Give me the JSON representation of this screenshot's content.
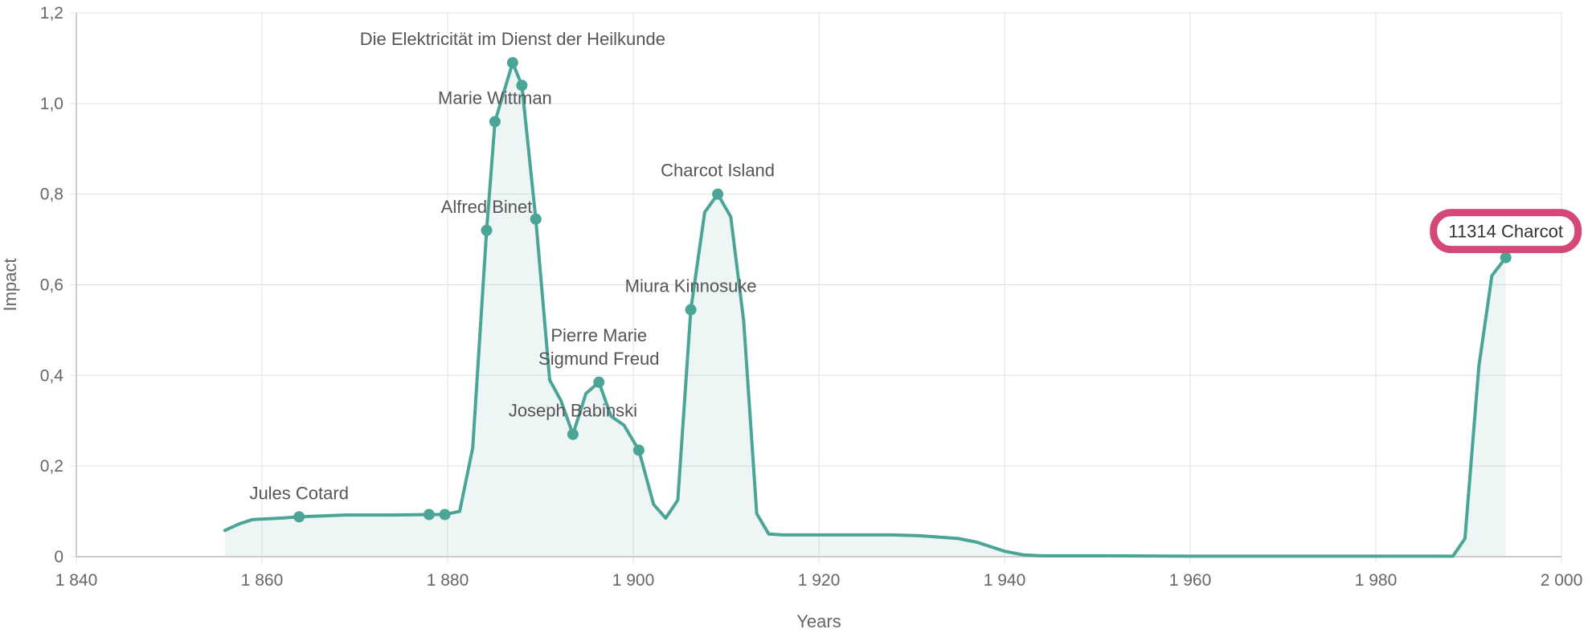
{
  "chart_data": {
    "type": "area",
    "xlabel": "Years",
    "ylabel": "Impact",
    "xlim": [
      1840,
      2000
    ],
    "ylim": [
      0,
      1.2
    ],
    "x_ticks": [
      1840,
      1860,
      1880,
      1900,
      1920,
      1940,
      1960,
      1980,
      2000
    ],
    "x_tick_labels": [
      "1 840",
      "1 860",
      "1 880",
      "1 900",
      "1 920",
      "1 940",
      "1 960",
      "1 980",
      "2 000"
    ],
    "y_ticks": [
      0,
      0.2,
      0.4,
      0.6,
      0.8,
      1.0,
      1.2
    ],
    "y_tick_labels": [
      "0",
      "0,2",
      "0,4",
      "0,6",
      "0,8",
      "1,0",
      "1,2"
    ],
    "grid": true,
    "colors": {
      "series": "#4aa597",
      "highlight": "#d44878"
    },
    "series": [
      {
        "x": [
          1856,
          1857.5,
          1859,
          1862,
          1864,
          1869,
          1874,
          1878,
          1879.7,
          1881.3,
          1882.7,
          1884.2,
          1885.1,
          1887,
          1888,
          1889.5,
          1891,
          1892.2,
          1893.5,
          1894.9,
          1896.3,
          1897.6,
          1899,
          1900.6,
          1902.2,
          1903.5,
          1904.8,
          1906.2,
          1907.7,
          1909.1,
          1910.5,
          1911.9,
          1913.3,
          1914.6,
          1916.1,
          1928,
          1931,
          1935,
          1937,
          1940,
          1942,
          1944,
          1950,
          1960,
          1970,
          1980,
          1988.3,
          1989.6,
          1991.1,
          1992.5,
          1994
        ],
        "y": [
          0.058,
          0.072,
          0.082,
          0.085,
          0.088,
          0.092,
          0.092,
          0.093,
          0.093,
          0.1,
          0.24,
          0.72,
          0.96,
          1.09,
          1.04,
          0.745,
          0.39,
          0.345,
          0.27,
          0.36,
          0.385,
          0.31,
          0.29,
          0.235,
          0.115,
          0.085,
          0.125,
          0.545,
          0.76,
          0.8,
          0.75,
          0.52,
          0.095,
          0.05,
          0.048,
          0.048,
          0.046,
          0.04,
          0.032,
          0.012,
          0.004,
          0.002,
          0.002,
          0.001,
          0.001,
          0.001,
          0.001,
          0.04,
          0.42,
          0.62,
          0.66
        ]
      }
    ],
    "labeled_points": [
      {
        "x": 1864,
        "y": 0.088,
        "label": "Jules Cotard"
      },
      {
        "x": 1878,
        "y": 0.093,
        "label": ""
      },
      {
        "x": 1879.7,
        "y": 0.093,
        "label": ""
      },
      {
        "x": 1884.2,
        "y": 0.72,
        "label": "Alfred Binet"
      },
      {
        "x": 1885.1,
        "y": 0.96,
        "label": "Marie Wittman"
      },
      {
        "x": 1887,
        "y": 1.09,
        "label": "Die Elektricität im Dienst der Heilkunde"
      },
      {
        "x": 1888,
        "y": 1.04,
        "label": ""
      },
      {
        "x": 1889.5,
        "y": 0.745,
        "label": ""
      },
      {
        "x": 1893.5,
        "y": 0.27,
        "label": "Joseph Babinski"
      },
      {
        "x": 1896.3,
        "y": 0.385,
        "label": "Sigmund Freud"
      },
      {
        "x": 1896.3,
        "y": 0.385,
        "label": "Pierre Marie"
      },
      {
        "x": 1900.6,
        "y": 0.235,
        "label": ""
      },
      {
        "x": 1906.2,
        "y": 0.545,
        "label": "Miura Kinnosuke"
      },
      {
        "x": 1909.1,
        "y": 0.8,
        "label": "Charcot Island"
      }
    ],
    "highlight": {
      "x": 1994,
      "y": 0.66,
      "label": "11314 Charcot"
    }
  }
}
